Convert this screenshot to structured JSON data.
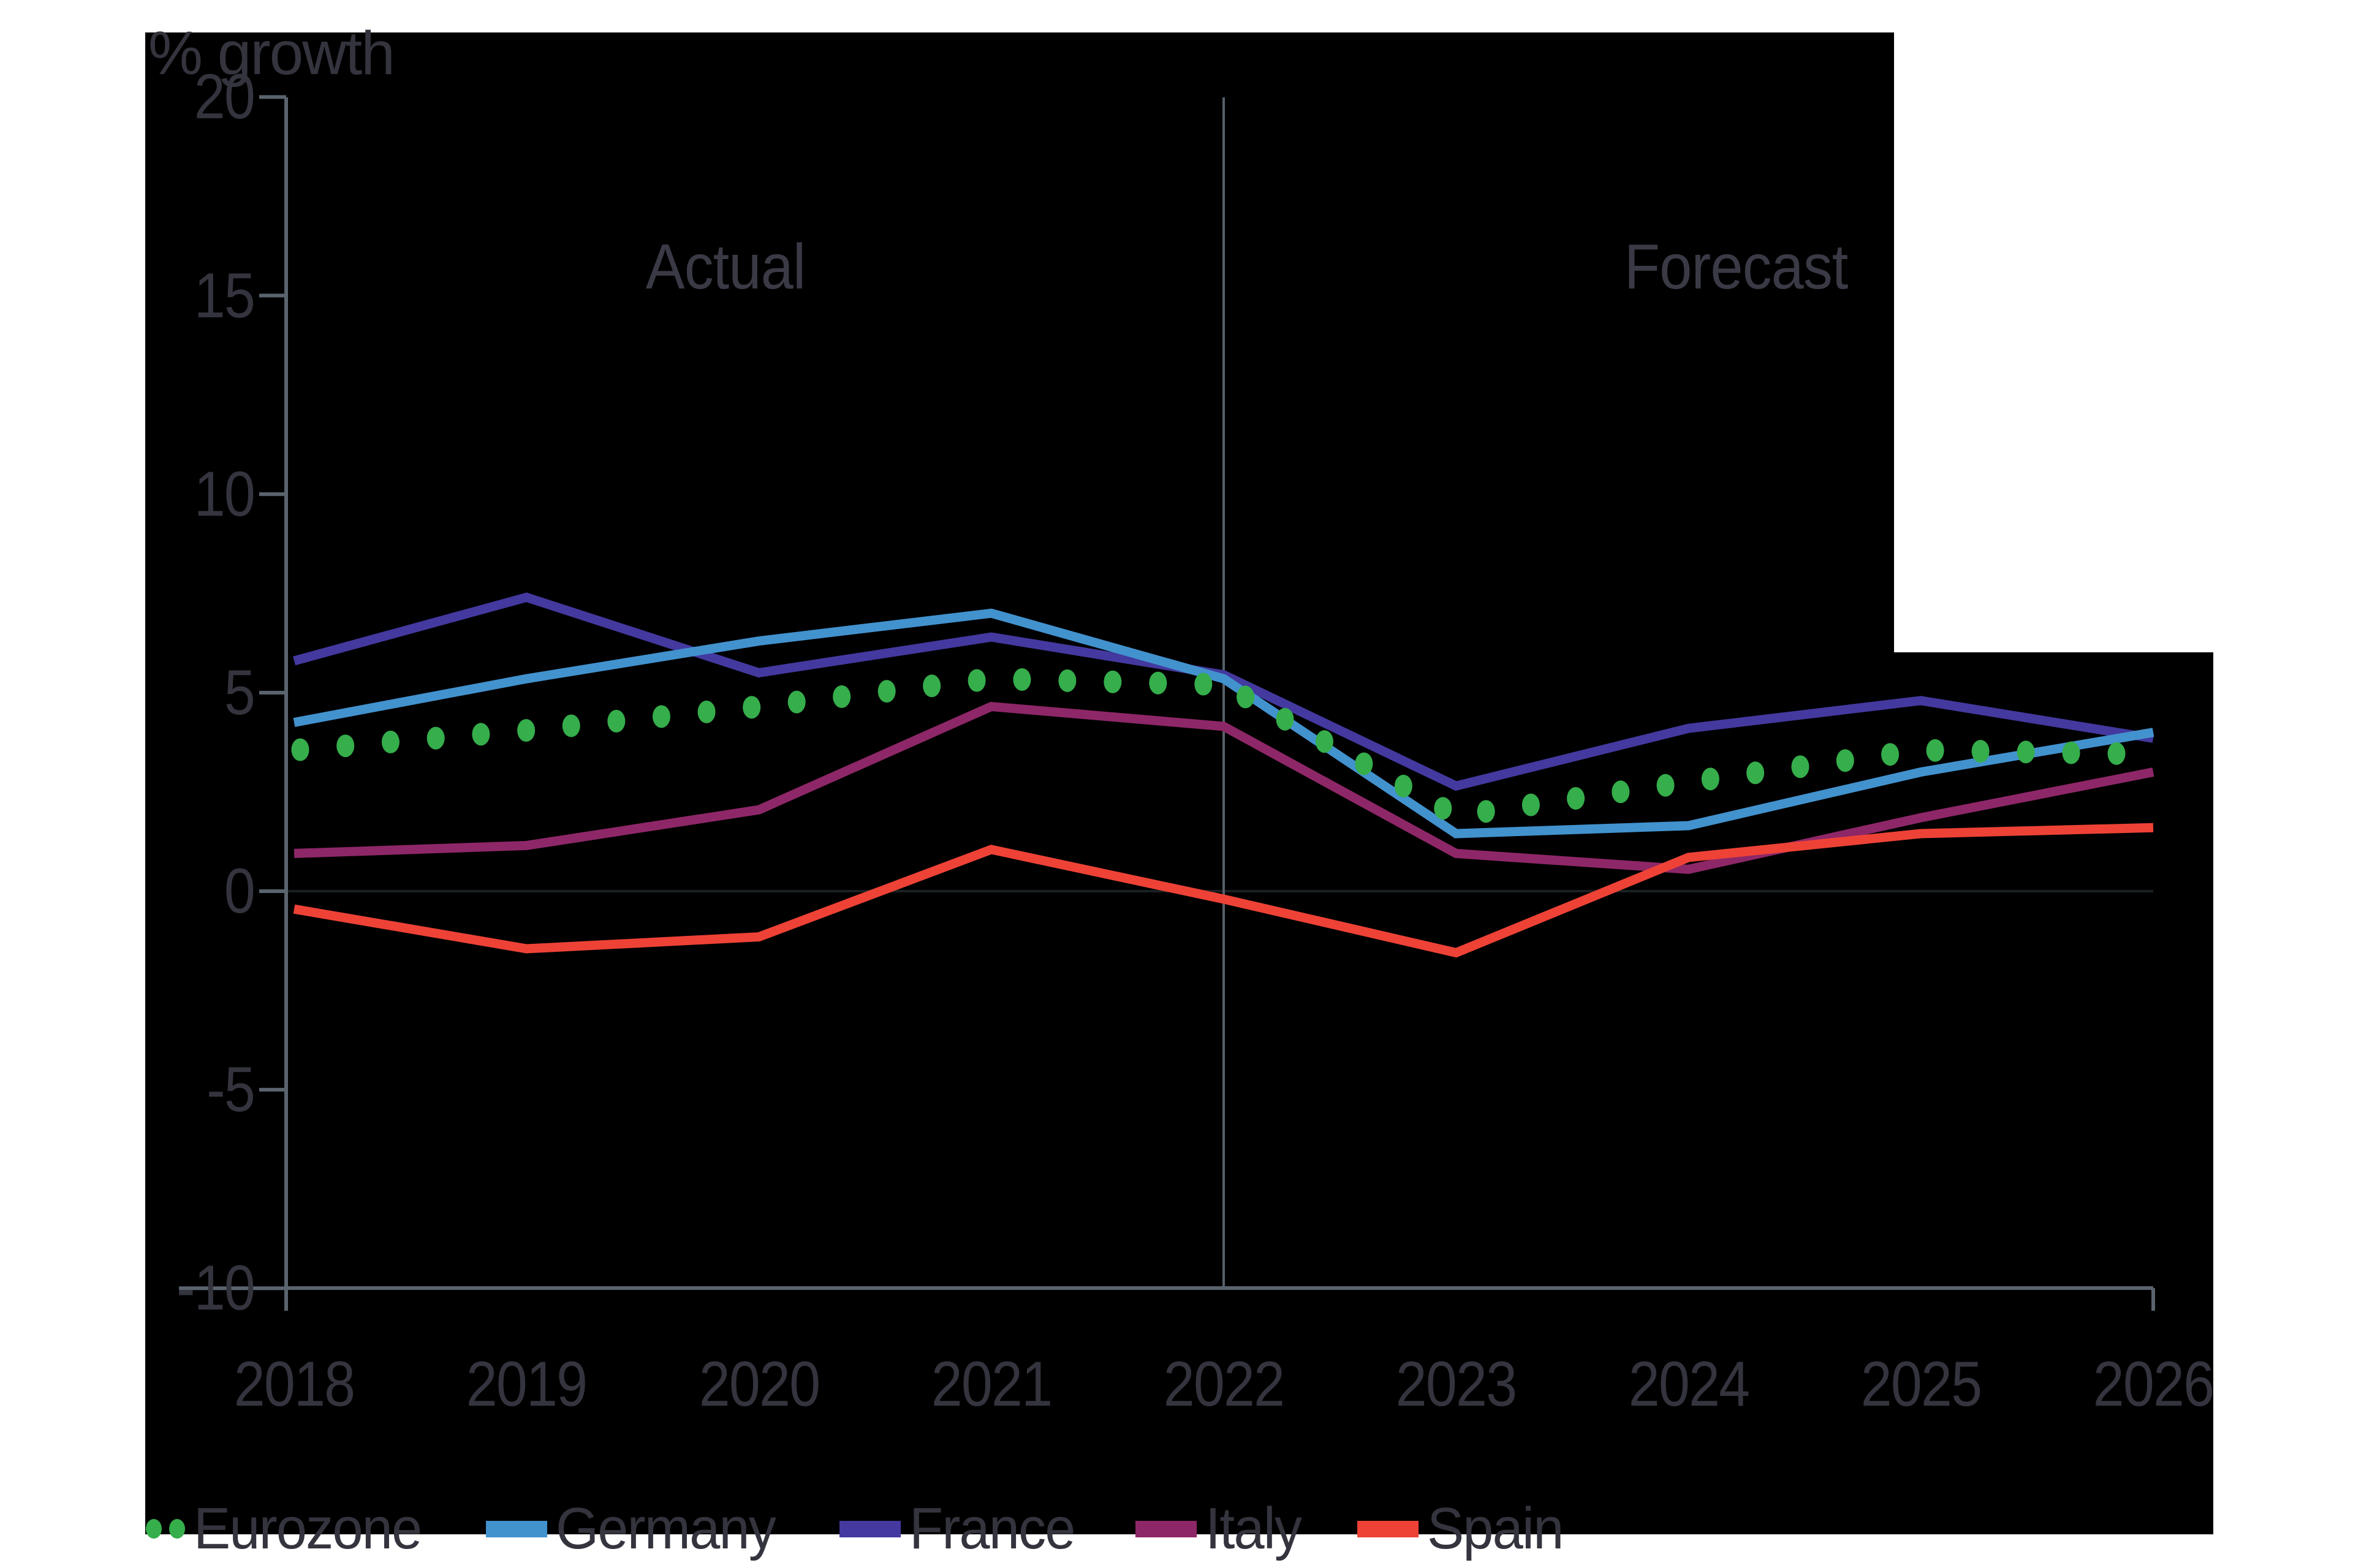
{
  "chart_data": {
    "type": "line",
    "ylabel": "% growth",
    "categories": [
      "2018",
      "2019",
      "2020",
      "2021",
      "2022",
      "2023",
      "2024",
      "2025",
      "2026"
    ],
    "yticks": [
      "20",
      "15",
      "10",
      "5",
      "0",
      "-5",
      "-10"
    ],
    "ytick_values": [
      20,
      15,
      10,
      5,
      0,
      -5,
      -10
    ],
    "ylim": [
      -10,
      20
    ],
    "divider_at_category_index": 4,
    "region_labels": {
      "actual": "Actual",
      "forecast": "Forecast"
    },
    "legend_position": "bottom-left",
    "grid": "off",
    "series": [
      {
        "name": "Eurozone",
        "style": "dotted",
        "color": "#35ae4b",
        "values": [
          3.55,
          4.05,
          4.65,
          5.35,
          5.2,
          1.9,
          2.75,
          3.55,
          3.45
        ]
      },
      {
        "name": "Germany",
        "style": "solid",
        "color": "#4292ce",
        "values": [
          4.25,
          5.35,
          6.3,
          7.0,
          5.35,
          1.45,
          1.65,
          3.0,
          4.0
        ]
      },
      {
        "name": "France",
        "style": "solid",
        "color": "#43399f",
        "values": [
          5.8,
          7.4,
          5.5,
          6.4,
          5.45,
          2.65,
          4.1,
          4.8,
          3.85
        ]
      },
      {
        "name": "Italy",
        "style": "solid",
        "color": "#8e2768",
        "values": [
          0.95,
          1.15,
          2.05,
          4.65,
          4.15,
          0.95,
          0.55,
          1.85,
          3.0
        ]
      },
      {
        "name": "Spain",
        "style": "solid",
        "color": "#ee4236",
        "values": [
          -0.45,
          -1.45,
          -1.15,
          1.05,
          -0.2,
          -1.55,
          0.85,
          1.45,
          1.6
        ]
      }
    ],
    "colors": {
      "axis": "#5a646e",
      "divider": "#566069",
      "zero_line": "#1b2022",
      "text": "#34343e",
      "background": "#000000",
      "page": "#ffffff"
    }
  }
}
